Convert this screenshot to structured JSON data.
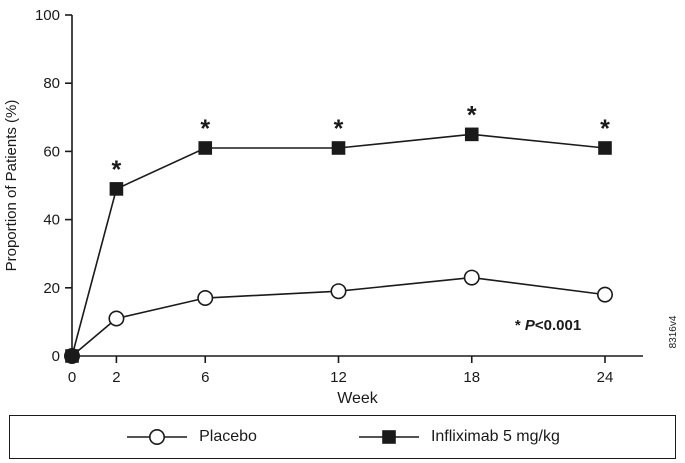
{
  "chart_data": {
    "type": "line",
    "title": "",
    "xlabel": "Week",
    "ylabel": "Proportion of Patients (%)",
    "x": [
      0,
      2,
      6,
      12,
      18,
      24
    ],
    "xticks": [
      0,
      2,
      6,
      12,
      18,
      24
    ],
    "yticks": [
      0,
      20,
      40,
      60,
      80,
      100
    ],
    "xlim": [
      0,
      24
    ],
    "ylim": [
      0,
      100
    ],
    "grid": false,
    "legend_position": "bottom-box",
    "series": [
      {
        "name": "Placebo",
        "marker": "circle",
        "values": [
          0,
          11,
          17,
          19,
          23,
          18
        ]
      },
      {
        "name": "Infliximab 5 mg/kg",
        "marker": "square",
        "values": [
          0,
          49,
          61,
          61,
          65,
          61
        ]
      }
    ],
    "significance_weeks": [
      2,
      6,
      12,
      18,
      24
    ],
    "significance_symbol": "*",
    "annotation": "* P<0.001",
    "side_label": "8316v4",
    "ink_color": "#1a1a1a"
  }
}
